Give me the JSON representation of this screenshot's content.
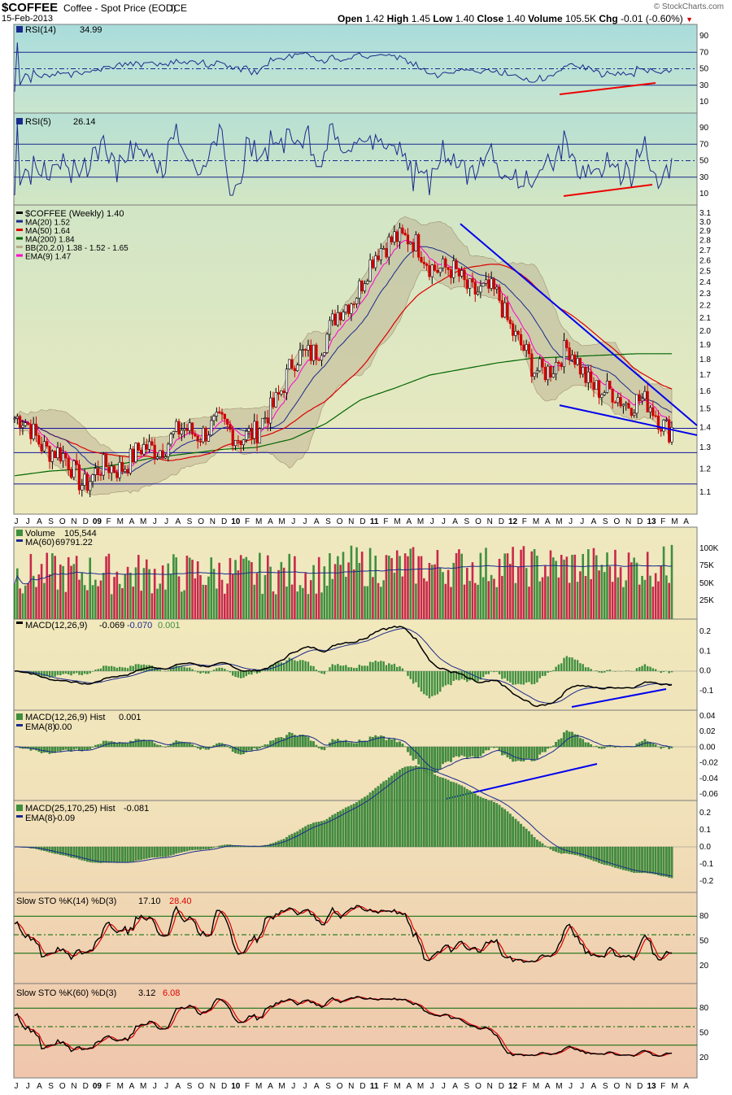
{
  "header": {
    "symbol": "$COFFEE",
    "description": "Coffee - Spot Price (EOD)",
    "exchange": "ICE",
    "date": "15-Feb-2013",
    "watermark": "© StockCharts.com",
    "quote": {
      "open_label": "Open",
      "open": "1.42",
      "high_label": "High",
      "high": "1.45",
      "low_label": "Low",
      "low": "1.40",
      "close_label": "Close",
      "close": "1.40",
      "volume_label": "Volume",
      "volume": "105.5K",
      "chg_label": "Chg",
      "chg": "-0.01 (-0.60%)"
    }
  },
  "colors": {
    "price_up": "#000000",
    "price_down": "#cc0000",
    "ma20": "#1a2a8c",
    "ma50": "#dd0000",
    "ma200": "#006600",
    "ema9": "#ff00cc",
    "volume_up": "#3f8f3f",
    "volume_down": "#c8294a",
    "trendline": "#0000ee",
    "divergence_red": "#ee0000"
  },
  "x_axis": {
    "labels_top": [
      "J",
      "J",
      "A",
      "S",
      "O",
      "N",
      "D",
      "09",
      "F",
      "M",
      "A",
      "M",
      "J",
      "J",
      "A",
      "S",
      "O",
      "N",
      "D",
      "10",
      "F",
      "M",
      "A",
      "M",
      "J",
      "J",
      "A",
      "S",
      "O",
      "N",
      "D",
      "11",
      "F",
      "M",
      "A",
      "M",
      "J",
      "J",
      "A",
      "S",
      "O",
      "N",
      "D",
      "12",
      "F",
      "M",
      "A",
      "M",
      "J",
      "J",
      "A",
      "S",
      "O",
      "N",
      "D",
      "13",
      "F",
      "M",
      "A"
    ],
    "labels_bottom": [
      "J",
      "J",
      "A",
      "S",
      "O",
      "N",
      "D",
      "09",
      "F",
      "M",
      "A",
      "M",
      "J",
      "J",
      "A",
      "S",
      "O",
      "N",
      "D",
      "10",
      "F",
      "M",
      "A",
      "M",
      "J",
      "J",
      "A",
      "S",
      "O",
      "N",
      "D",
      "11",
      "F",
      "M",
      "A",
      "M",
      "J",
      "J",
      "A",
      "S",
      "O",
      "N",
      "D",
      "12",
      "F",
      "M",
      "A",
      "M",
      "J",
      "J",
      "A",
      "S",
      "O",
      "N",
      "D",
      "13",
      "F",
      "M",
      "A"
    ],
    "bold_labels": [
      "09",
      "10",
      "11",
      "12",
      "13"
    ]
  },
  "panels": {
    "rsi14": {
      "label": "RSI(14)",
      "value": "34.99",
      "ticks": [
        "90",
        "70",
        "50",
        "30",
        "10"
      ]
    },
    "rsi5": {
      "label": "RSI(5)",
      "value": "26.14",
      "ticks": [
        "90",
        "70",
        "50",
        "30",
        "10"
      ]
    },
    "price": {
      "legend": [
        {
          "name": "$COFFEE (Weekly)",
          "value": "1.40"
        },
        {
          "name": "MA(20)",
          "value": "1.52"
        },
        {
          "name": "MA(50)",
          "value": "1.64"
        },
        {
          "name": "MA(200)",
          "value": "1.84"
        },
        {
          "name": "BB(20,2.0)",
          "value": "1.38 - 1.52 - 1.65"
        },
        {
          "name": "EMA(9)",
          "value": "1.47"
        }
      ],
      "ticks": [
        "3.1",
        "3.0",
        "2.9",
        "2.8",
        "2.7",
        "2.6",
        "2.5",
        "2.4",
        "2.3",
        "2.2",
        "2.1",
        "2.0",
        "1.9",
        "1.8",
        "1.7",
        "1.6",
        "1.5",
        "1.4",
        "1.3",
        "1.2",
        "1.1"
      ]
    },
    "volume": {
      "label": "Volume",
      "value": "105,544",
      "ma_label": "MA(60)",
      "ma_value": "69791.22",
      "ticks": [
        "100K",
        "75K",
        "50K",
        "25K"
      ]
    },
    "macd1": {
      "label": "MACD(12,26,9)",
      "v1": "-0.069",
      "v2": "-0.070",
      "v3": "0.001",
      "ticks": [
        "0.2",
        "0.1",
        "0.0",
        "-0.1"
      ]
    },
    "macd2": {
      "label": "MACD(12,26,9) Hist",
      "value": "0.001",
      "ema_label": "EMA(8)",
      "ema_value": "0.00",
      "ticks": [
        "0.04",
        "0.02",
        "0.00",
        "-0.02",
        "-0.04",
        "-0.06"
      ]
    },
    "macd3": {
      "label": "MACD(25,170,25) Hist",
      "value": "-0.081",
      "ema_label": "EMA(8)",
      "ema_value": "-0.09",
      "ticks": [
        "0.2",
        "0.1",
        "0.0",
        "-0.1",
        "-0.2"
      ]
    },
    "sto14": {
      "label": "Slow STO %K(14) %D(3)",
      "k": "17.10",
      "d": "28.40",
      "ticks": [
        "80",
        "50",
        "20"
      ]
    },
    "sto60": {
      "label": "Slow STO %K(60) %D(3)",
      "k": "3.12",
      "d": "6.08",
      "ticks": [
        "80",
        "50",
        "20"
      ]
    }
  },
  "chart_data": {
    "type": "line",
    "title": "$COFFEE Coffee - Spot Price (EOD) ICE",
    "x": [
      "2008-07",
      "2008-10",
      "2009-01",
      "2009-04",
      "2009-07",
      "2009-10",
      "2010-01",
      "2010-04",
      "2010-07",
      "2010-10",
      "2011-01",
      "2011-04",
      "2011-07",
      "2011-10",
      "2012-01",
      "2012-04",
      "2012-07",
      "2012-10",
      "2013-01",
      "2013-02"
    ],
    "series": [
      {
        "name": "$COFFEE (Weekly)",
        "values": [
          1.45,
          1.3,
          1.15,
          1.22,
          1.3,
          1.38,
          1.4,
          1.35,
          1.75,
          1.95,
          2.4,
          2.9,
          2.6,
          2.4,
          2.25,
          1.7,
          1.85,
          1.58,
          1.55,
          1.4
        ]
      },
      {
        "name": "MA(200)",
        "values": [
          1.17,
          1.19,
          1.2,
          1.22,
          1.25,
          1.27,
          1.29,
          1.3,
          1.34,
          1.42,
          1.55,
          1.62,
          1.7,
          1.74,
          1.78,
          1.81,
          1.82,
          1.83,
          1.84,
          1.84
        ]
      }
    ],
    "ylim": [
      1.0,
      3.1
    ],
    "log_scale": true,
    "grid": true,
    "legend": "top-left"
  }
}
